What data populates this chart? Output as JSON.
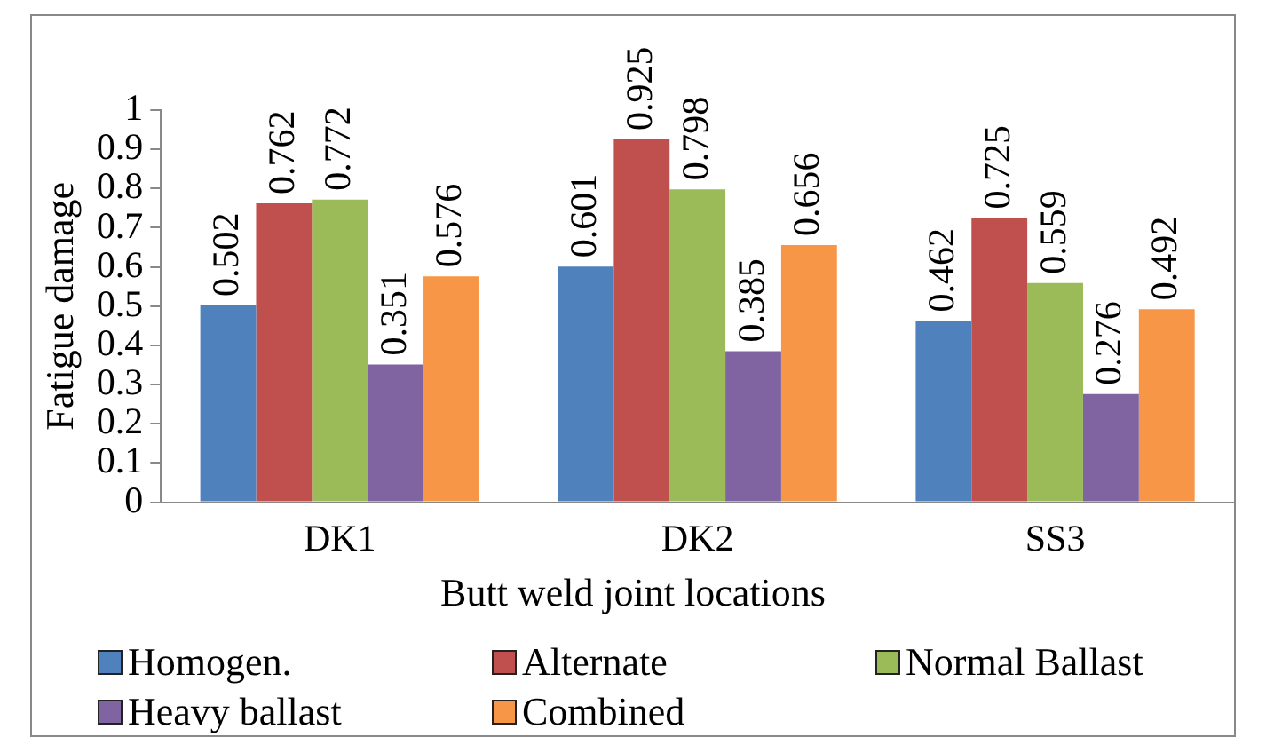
{
  "chart_data": {
    "type": "bar",
    "xlabel": "Butt weld joint locations",
    "ylabel": "Fatigue damage",
    "categories": [
      "DK1",
      "DK2",
      "SS3"
    ],
    "series": [
      {
        "name": "Homogen.",
        "color": "#4f81bd",
        "values": [
          0.502,
          0.601,
          0.462
        ]
      },
      {
        "name": "Alternate",
        "color": "#c0504d",
        "values": [
          0.762,
          0.925,
          0.725
        ]
      },
      {
        "name": "Normal Ballast",
        "color": "#9bbb59",
        "values": [
          0.772,
          0.798,
          0.559
        ]
      },
      {
        "name": "Heavy ballast",
        "color": "#8064a2",
        "values": [
          0.351,
          0.385,
          0.276
        ]
      },
      {
        "name": "Combined",
        "color": "#f79646",
        "values": [
          0.576,
          0.656,
          0.492
        ]
      }
    ],
    "ylim": [
      0,
      1
    ],
    "yticks": [
      0,
      0.1,
      0.2,
      0.3,
      0.4,
      0.5,
      0.6,
      0.7,
      0.8,
      0.9,
      1
    ],
    "grid": false,
    "legend": "bottom",
    "data_labels": true
  }
}
